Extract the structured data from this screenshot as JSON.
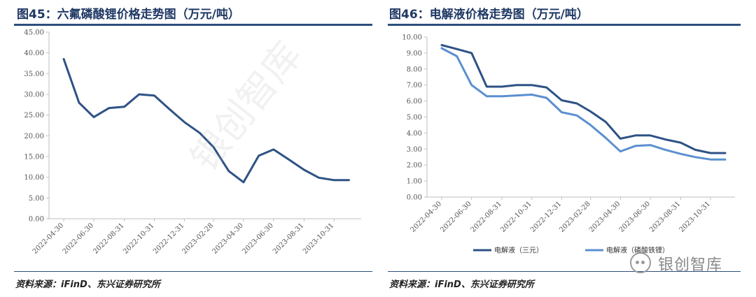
{
  "left": {
    "title": "图45：六氟磷酸锂价格走势图（万元/吨）",
    "source": "资料来源：iFinD、东兴证券研究所"
  },
  "right": {
    "title": "图46：电解液价格走势图（万元/吨）",
    "source": "资料来源：iFinD、东兴证券研究所"
  },
  "watermark": {
    "brand": "银创智库",
    "diagonal": "银创智库"
  },
  "colors": {
    "title": "#1f3864",
    "series_dark": "#2e5285",
    "series_light": "#5b8fd0",
    "axis": "#bfbfbf"
  },
  "chart_data": [
    {
      "type": "line",
      "title": "图45：六氟磷酸锂价格走势图（万元/吨）",
      "ylim": [
        0,
        45
      ],
      "yticks": [
        "0.00",
        "5.00",
        "10.00",
        "15.00",
        "20.00",
        "25.00",
        "30.00",
        "35.00",
        "40.00",
        "45.00"
      ],
      "xlim": [
        "2022-03-31",
        "2023-12-25"
      ],
      "xticks": [
        "2022-04-30",
        "2022-06-30",
        "2022-08-31",
        "2022-10-31",
        "2022-12-31",
        "2023-02-28",
        "2023-04-30",
        "2023-06-30",
        "2023-08-31",
        "2023-10-31"
      ],
      "legend": null,
      "series": [
        {
          "name": "",
          "color": "#2e5285",
          "points": [
            [
              "2022-04-30",
              38.5
            ],
            [
              "2022-05-31",
              28.0
            ],
            [
              "2022-06-30",
              24.5
            ],
            [
              "2022-07-31",
              26.7
            ],
            [
              "2022-08-31",
              27.0
            ],
            [
              "2022-09-30",
              30.0
            ],
            [
              "2022-10-31",
              29.7
            ],
            [
              "2022-11-30",
              26.5
            ],
            [
              "2022-12-31",
              23.3
            ],
            [
              "2023-01-31",
              20.7
            ],
            [
              "2023-02-28",
              17.3
            ],
            [
              "2023-03-31",
              11.5
            ],
            [
              "2023-04-30",
              8.8
            ],
            [
              "2023-05-31",
              15.2
            ],
            [
              "2023-06-30",
              16.7
            ],
            [
              "2023-07-31",
              14.3
            ],
            [
              "2023-08-31",
              11.8
            ],
            [
              "2023-09-30",
              9.9
            ],
            [
              "2023-10-31",
              9.3
            ],
            [
              "2023-11-30",
              9.3
            ]
          ]
        }
      ]
    },
    {
      "type": "line",
      "title": "图46：电解液价格走势图（万元/吨）",
      "ylim": [
        0,
        10
      ],
      "yticks": [
        "0.00",
        "1.00",
        "2.00",
        "3.00",
        "4.00",
        "5.00",
        "6.00",
        "7.00",
        "8.00",
        "9.00",
        "10.00"
      ],
      "xlim": [
        "2022-03-31",
        "2023-12-20"
      ],
      "xticks": [
        "2022-04-30",
        "2022-06-30",
        "2022-08-31",
        "2022-10-31",
        "2022-12-31",
        "2023-02-28",
        "2023-04-30",
        "2023-06-30",
        "2023-08-31",
        "2023-10-31"
      ],
      "legend": "bottom",
      "series": [
        {
          "name": "电解液（三元）",
          "color": "#2e5285",
          "points": [
            [
              "2022-04-30",
              9.5
            ],
            [
              "2022-05-31",
              9.25
            ],
            [
              "2022-06-30",
              9.0
            ],
            [
              "2022-07-31",
              6.9
            ],
            [
              "2022-08-31",
              6.9
            ],
            [
              "2022-09-30",
              7.0
            ],
            [
              "2022-10-31",
              7.0
            ],
            [
              "2022-11-30",
              6.85
            ],
            [
              "2022-12-31",
              6.05
            ],
            [
              "2023-01-31",
              5.85
            ],
            [
              "2023-02-28",
              5.35
            ],
            [
              "2023-03-31",
              4.7
            ],
            [
              "2023-04-30",
              3.65
            ],
            [
              "2023-05-31",
              3.85
            ],
            [
              "2023-06-30",
              3.85
            ],
            [
              "2023-07-31",
              3.6
            ],
            [
              "2023-08-31",
              3.4
            ],
            [
              "2023-09-30",
              2.95
            ],
            [
              "2023-10-31",
              2.75
            ],
            [
              "2023-11-30",
              2.75
            ]
          ]
        },
        {
          "name": "电解液（磷酸铁锂）",
          "color": "#5b8fd0",
          "points": [
            [
              "2022-04-30",
              9.3
            ],
            [
              "2022-05-31",
              8.8
            ],
            [
              "2022-06-30",
              7.0
            ],
            [
              "2022-07-31",
              6.3
            ],
            [
              "2022-08-31",
              6.3
            ],
            [
              "2022-09-30",
              6.35
            ],
            [
              "2022-10-31",
              6.4
            ],
            [
              "2022-11-30",
              6.2
            ],
            [
              "2022-12-31",
              5.3
            ],
            [
              "2023-01-31",
              5.1
            ],
            [
              "2023-02-28",
              4.5
            ],
            [
              "2023-03-31",
              3.7
            ],
            [
              "2023-04-30",
              2.85
            ],
            [
              "2023-05-31",
              3.2
            ],
            [
              "2023-06-30",
              3.25
            ],
            [
              "2023-07-31",
              2.95
            ],
            [
              "2023-08-31",
              2.7
            ],
            [
              "2023-09-30",
              2.5
            ],
            [
              "2023-10-31",
              2.35
            ],
            [
              "2023-11-30",
              2.35
            ]
          ]
        }
      ]
    }
  ]
}
